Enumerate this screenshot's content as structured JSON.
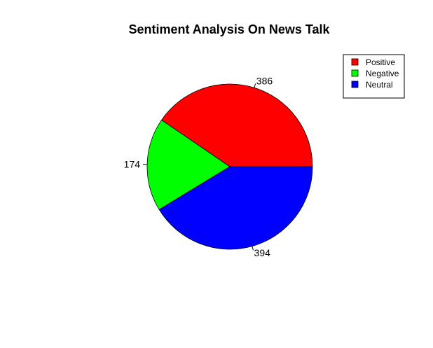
{
  "chart_data": {
    "type": "pie",
    "title": "Sentiment Analysis On News Talk",
    "categories": [
      "Positive",
      "Negative",
      "Neutral"
    ],
    "values": [
      386,
      174,
      394
    ],
    "colors": [
      "#ff0000",
      "#00ff00",
      "#0000ff"
    ],
    "legend": {
      "placement": "top-right",
      "entries": [
        "Positive",
        "Negative",
        "Neutral"
      ]
    }
  }
}
